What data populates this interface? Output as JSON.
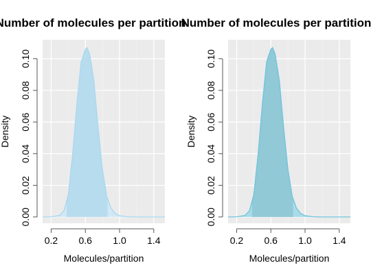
{
  "chart_data": [
    {
      "type": "area",
      "title": "Number of molecules per partition",
      "xlabel": "Molecules/partition",
      "ylabel": "Density",
      "xlim": [
        0.1,
        1.53
      ],
      "ylim": [
        -0.004,
        0.112
      ],
      "xticks": [
        "0.2",
        "0.6",
        "1.0",
        "1.4"
      ],
      "xtick_values": [
        0.2,
        0.6,
        1.0,
        1.4
      ],
      "yticks": [
        "0.00",
        "0.02",
        "0.04",
        "0.06",
        "0.08",
        "0.10"
      ],
      "ytick_values": [
        0.0,
        0.02,
        0.04,
        0.06,
        0.08,
        0.1
      ],
      "grid": true,
      "fill_color": "#d2e8f5",
      "line_color": "#a9d7f0",
      "highlight_color": "#b7dcee",
      "highlight_range": [
        0.38,
        0.86
      ],
      "x": [
        0.1,
        0.2,
        0.3,
        0.35,
        0.4,
        0.45,
        0.5,
        0.55,
        0.6,
        0.62,
        0.65,
        0.7,
        0.75,
        0.8,
        0.85,
        0.9,
        0.95,
        1.0,
        1.1,
        1.2,
        1.3,
        1.4,
        1.53
      ],
      "y": [
        0.0,
        0.0001,
        0.001,
        0.004,
        0.014,
        0.039,
        0.071,
        0.098,
        0.106,
        0.107,
        0.103,
        0.086,
        0.056,
        0.03,
        0.013,
        0.0055,
        0.0022,
        0.0008,
        0.0001,
        0.0,
        0.0,
        0.0,
        0.0
      ]
    },
    {
      "type": "area",
      "title": "Number of molecules per partition",
      "xlabel": "Molecules/partition",
      "ylabel": "Density",
      "xlim": [
        0.1,
        1.53
      ],
      "ylim": [
        -0.004,
        0.112
      ],
      "xticks": [
        "0.2",
        "0.6",
        "1.0",
        "1.4"
      ],
      "xtick_values": [
        0.2,
        0.6,
        1.0,
        1.4
      ],
      "yticks": [
        "0.00",
        "0.02",
        "0.04",
        "0.06",
        "0.08",
        "0.10"
      ],
      "ytick_values": [
        0.0,
        0.02,
        0.04,
        0.06,
        0.08,
        0.1
      ],
      "grid": true,
      "fill_color": "#a9dbe9",
      "line_color": "#6fc4dc",
      "highlight_color": "#91c9d6",
      "highlight_range": [
        0.38,
        0.86
      ],
      "x": [
        0.1,
        0.2,
        0.3,
        0.35,
        0.4,
        0.45,
        0.5,
        0.55,
        0.6,
        0.62,
        0.65,
        0.7,
        0.75,
        0.8,
        0.85,
        0.9,
        0.95,
        1.0,
        1.1,
        1.2,
        1.3,
        1.4,
        1.53
      ],
      "y": [
        0.0,
        0.0001,
        0.001,
        0.004,
        0.014,
        0.039,
        0.071,
        0.098,
        0.106,
        0.107,
        0.103,
        0.086,
        0.056,
        0.03,
        0.013,
        0.0055,
        0.0022,
        0.0008,
        0.0001,
        0.0,
        0.0,
        0.0,
        0.0
      ]
    }
  ]
}
